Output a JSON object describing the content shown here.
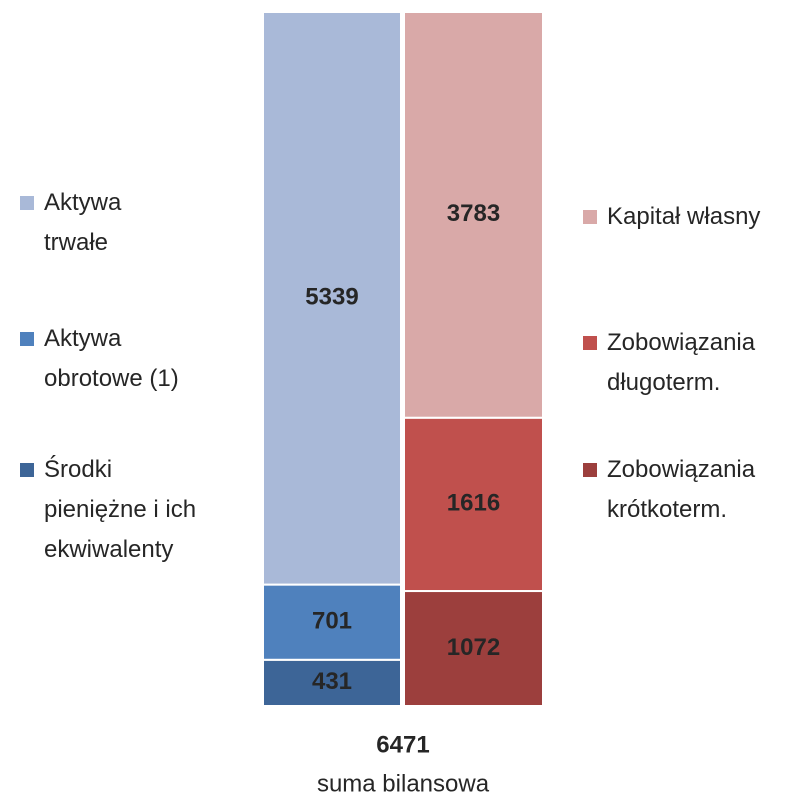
{
  "chart_data": {
    "type": "stacked_bar",
    "stacks": [
      {
        "segments": [
          {
            "name": "Środki pieniężne i ich ekwiwalenty",
            "color": "#3d6597",
            "value": 431
          },
          {
            "name": "Aktywa obrotowe (1)",
            "color": "#4f81bd",
            "value": 701
          },
          {
            "name": "Aktywa trwałe",
            "color": "#a9b9d8",
            "value": 5339
          }
        ]
      },
      {
        "segments": [
          {
            "name": "Zobowiązania krótkoterm.",
            "color": "#9c3f3d",
            "value": 1072
          },
          {
            "name": "Zobowiązania długoterm.",
            "color": "#c0504d",
            "value": 1616
          },
          {
            "name": "Kapitał własny",
            "color": "#d9a9a8",
            "value": 3783
          }
        ]
      }
    ],
    "total": {
      "value": 6471,
      "label": "suma bilansowa"
    }
  }
}
